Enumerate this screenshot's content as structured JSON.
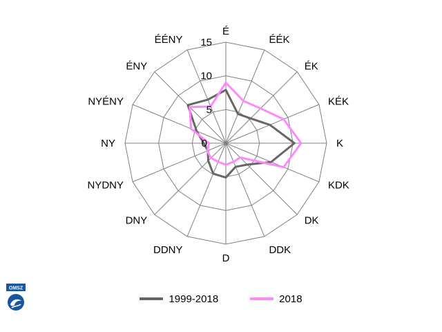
{
  "chart_data": {
    "type": "radar",
    "directions": [
      "É",
      "ÉÉK",
      "ÉK",
      "KÉK",
      "K",
      "KDK",
      "DK",
      "DDK",
      "D",
      "DDNY",
      "DNY",
      "NYDNY",
      "NY",
      "NYÉNY",
      "ÉNY",
      "ÉÉNY"
    ],
    "radial_ticks": [
      0,
      5,
      10,
      15
    ],
    "rmax": 15,
    "grid": true,
    "legend_position": "bottom",
    "series": [
      {
        "name": "1999-2018",
        "color": "#666666",
        "values": [
          7.9,
          4.7,
          5.2,
          7.1,
          10.2,
          7.3,
          4.5,
          3.8,
          5.1,
          4.9,
          3.7,
          2.9,
          3.3,
          4.7,
          8.0,
          7.0
        ]
      },
      {
        "name": "2018",
        "color": "#ff88ff",
        "values": [
          9.0,
          6.8,
          7.3,
          9.3,
          11.2,
          9.3,
          3.0,
          3.0,
          3.2,
          3.0,
          3.1,
          3.0,
          2.5,
          5.6,
          7.6,
          5.9
        ]
      }
    ]
  },
  "logo": {
    "text": "OMSZ",
    "color": "#1a56a0"
  }
}
